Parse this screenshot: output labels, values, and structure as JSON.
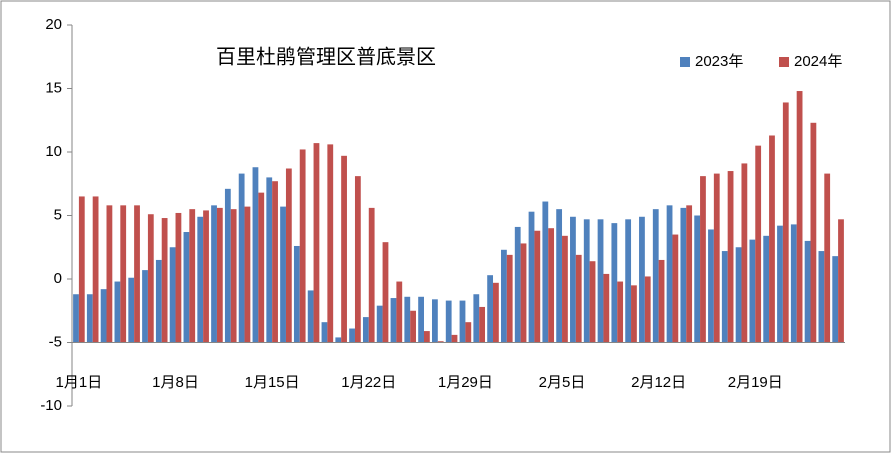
{
  "chart_data": {
    "type": "bar",
    "title": "百里杜鹃管理区普底景区",
    "categories": [
      "1月1日",
      null,
      null,
      null,
      null,
      null,
      null,
      "1月8日",
      null,
      null,
      null,
      null,
      null,
      null,
      "1月15日",
      null,
      null,
      null,
      null,
      null,
      null,
      "1月22日",
      null,
      null,
      null,
      null,
      null,
      null,
      "1月29日",
      null,
      null,
      null,
      null,
      null,
      null,
      "2月5日",
      null,
      null,
      null,
      null,
      null,
      null,
      "2月12日",
      null,
      null,
      null,
      null,
      null,
      null,
      "2月19日",
      null,
      null,
      null,
      null,
      null,
      null
    ],
    "series": [
      {
        "name": "2023年",
        "color": "#4f81bd",
        "values": [
          -1.2,
          -1.2,
          -0.8,
          -0.2,
          0.1,
          0.7,
          1.5,
          2.5,
          3.7,
          4.9,
          5.8,
          7.1,
          8.3,
          8.8,
          8.0,
          5.7,
          2.6,
          -0.9,
          -3.4,
          -4.6,
          -3.9,
          -3.0,
          -2.1,
          -1.5,
          -1.4,
          -1.4,
          -1.6,
          -1.7,
          -1.7,
          -1.2,
          0.3,
          2.3,
          4.1,
          5.3,
          6.1,
          5.5,
          4.9,
          4.7,
          4.7,
          4.4,
          4.7,
          4.9,
          5.5,
          5.8,
          5.6,
          5.0,
          3.9,
          2.2,
          2.5,
          3.1,
          3.4,
          4.2,
          4.3,
          3.0,
          2.2,
          1.8
        ]
      },
      {
        "name": "2024年",
        "color": "#c0504d",
        "values": [
          6.5,
          6.5,
          5.8,
          5.8,
          5.8,
          5.1,
          4.8,
          5.2,
          5.5,
          5.4,
          5.6,
          5.5,
          5.7,
          6.8,
          7.7,
          8.7,
          10.2,
          10.7,
          10.6,
          9.7,
          8.1,
          5.6,
          2.9,
          -0.2,
          -2.5,
          -4.1,
          -4.9,
          -4.4,
          -3.4,
          -2.2,
          -0.3,
          1.9,
          2.8,
          3.8,
          4.0,
          3.4,
          1.9,
          1.4,
          0.4,
          -0.2,
          -0.5,
          0.2,
          1.5,
          3.5,
          5.8,
          8.1,
          8.3,
          8.5,
          9.1,
          10.5,
          11.3,
          13.9,
          14.8,
          12.3,
          8.3,
          4.7
        ]
      }
    ],
    "ylim": [
      -10,
      20
    ],
    "yticks": [
      -10,
      -5,
      0,
      5,
      10,
      15,
      20
    ],
    "axis_crossing": -5,
    "grid": false,
    "legend": "top-right"
  }
}
